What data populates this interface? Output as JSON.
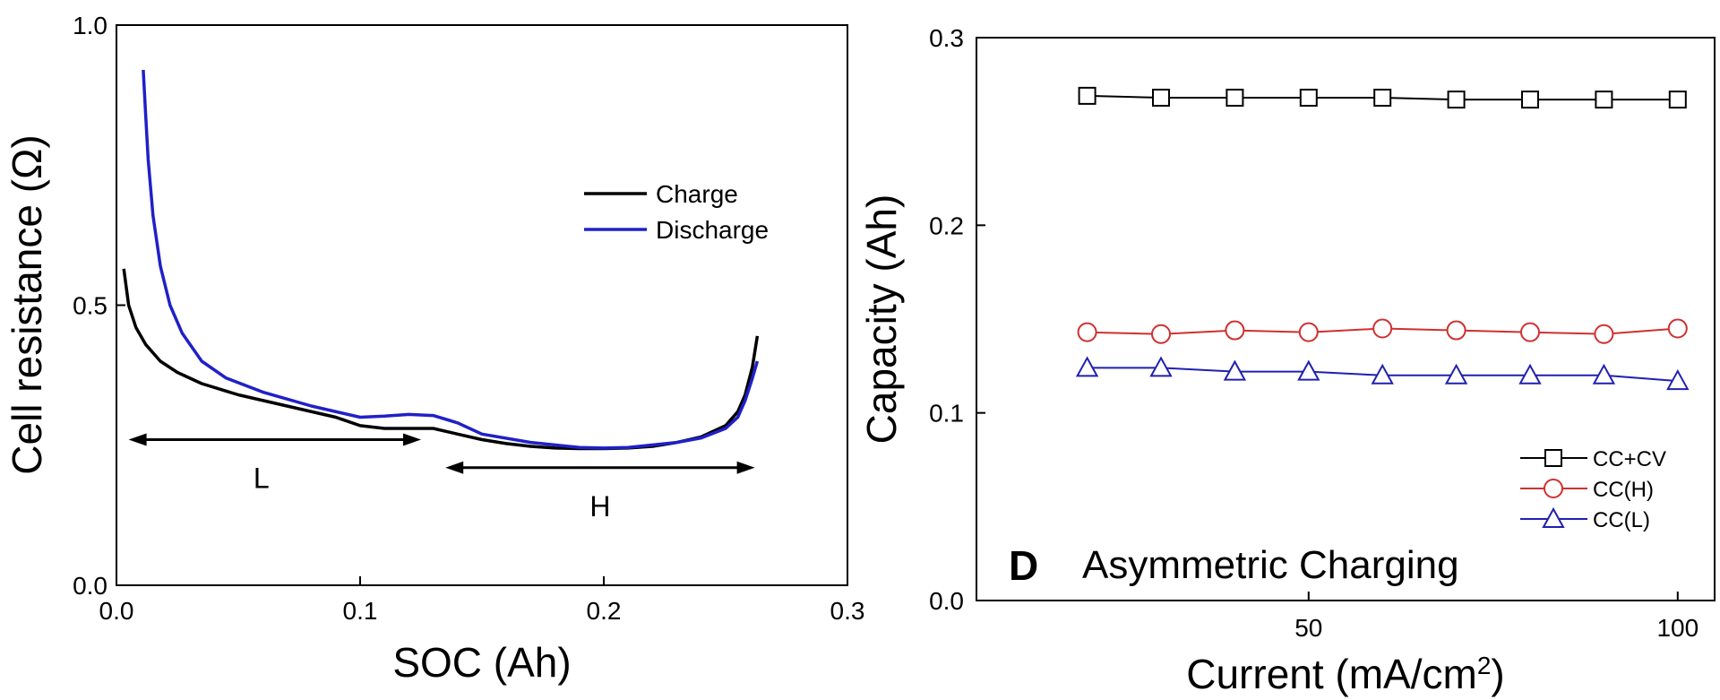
{
  "chart_data": [
    {
      "type": "line",
      "xlabel": "SOC (Ah)",
      "ylabel": "Cell resistance (Ω)",
      "xlim": [
        0.0,
        0.3
      ],
      "ylim": [
        0.0,
        1.0
      ],
      "xticks": [
        "0.0",
        "0.1",
        "0.2",
        "0.3"
      ],
      "yticks": [
        "0.0",
        "0.5",
        "1.0"
      ],
      "grid": false,
      "legend_position": "right",
      "series": [
        {
          "name": "Charge",
          "color": "#000000",
          "x": [
            0.003,
            0.005,
            0.008,
            0.012,
            0.018,
            0.025,
            0.035,
            0.05,
            0.07,
            0.09,
            0.1,
            0.11,
            0.12,
            0.13,
            0.14,
            0.15,
            0.16,
            0.17,
            0.18,
            0.19,
            0.2,
            0.21,
            0.22,
            0.23,
            0.24,
            0.25,
            0.255,
            0.258,
            0.261,
            0.263
          ],
          "values": [
            0.565,
            0.5,
            0.46,
            0.43,
            0.4,
            0.38,
            0.36,
            0.34,
            0.32,
            0.3,
            0.285,
            0.28,
            0.28,
            0.28,
            0.27,
            0.26,
            0.253,
            0.248,
            0.245,
            0.244,
            0.244,
            0.245,
            0.248,
            0.255,
            0.265,
            0.285,
            0.31,
            0.34,
            0.39,
            0.445
          ]
        },
        {
          "name": "Discharge",
          "color": "#2020c8",
          "x": [
            0.011,
            0.012,
            0.013,
            0.015,
            0.018,
            0.022,
            0.027,
            0.035,
            0.045,
            0.06,
            0.08,
            0.1,
            0.11,
            0.12,
            0.13,
            0.14,
            0.15,
            0.17,
            0.19,
            0.2,
            0.21,
            0.23,
            0.24,
            0.25,
            0.255,
            0.258,
            0.261,
            0.263
          ],
          "values": [
            0.92,
            0.84,
            0.76,
            0.66,
            0.57,
            0.5,
            0.45,
            0.4,
            0.37,
            0.345,
            0.32,
            0.3,
            0.302,
            0.305,
            0.303,
            0.29,
            0.27,
            0.255,
            0.246,
            0.245,
            0.246,
            0.255,
            0.263,
            0.28,
            0.3,
            0.33,
            0.37,
            0.4
          ]
        }
      ],
      "annotations": [
        {
          "text": "L",
          "x_range": [
            0.005,
            0.125
          ],
          "y": 0.26
        },
        {
          "text": "H",
          "x_range": [
            0.135,
            0.262
          ],
          "y": 0.21
        }
      ]
    },
    {
      "type": "line",
      "xlabel": "Current (mA/cm",
      "xlabel_sup": "2",
      "xlabel_end": ")",
      "ylabel": "Capacity (Ah)",
      "xlim": [
        5,
        105
      ],
      "ylim": [
        0.0,
        0.3
      ],
      "xticks": [
        "50",
        "100"
      ],
      "yticks": [
        "0.0",
        "0.1",
        "0.2",
        "0.3"
      ],
      "grid": false,
      "legend_position": "bottom-right",
      "panel_letter": "D",
      "title": "Asymmetric Charging",
      "x": [
        20,
        30,
        40,
        50,
        60,
        70,
        80,
        90,
        100
      ],
      "series": [
        {
          "name": "CC+CV",
          "color": "#000000",
          "marker": "square",
          "values": [
            0.269,
            0.268,
            0.268,
            0.268,
            0.268,
            0.267,
            0.267,
            0.267,
            0.267
          ]
        },
        {
          "name": "CC(H)",
          "color": "#d03030",
          "marker": "circle",
          "values": [
            0.143,
            0.142,
            0.144,
            0.143,
            0.145,
            0.144,
            0.143,
            0.142,
            0.145
          ]
        },
        {
          "name": "CC(L)",
          "color": "#2020b0",
          "marker": "triangle",
          "values": [
            0.124,
            0.124,
            0.122,
            0.122,
            0.12,
            0.12,
            0.12,
            0.12,
            0.117
          ]
        }
      ]
    }
  ]
}
